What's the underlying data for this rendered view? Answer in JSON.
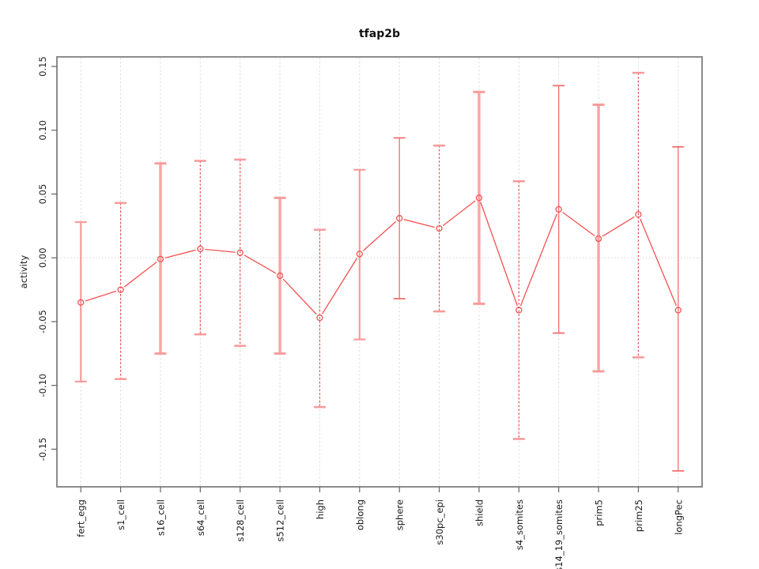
{
  "chart_data": {
    "type": "line",
    "title": "tfap2b",
    "xlabel": "",
    "ylabel": "activity",
    "legend": "none",
    "grid": "vertical dashed gridlines at each category; dotted horizontal line at y=0",
    "categories": [
      "fert_egg",
      "s1_cell",
      "s16_cell",
      "s64_cell",
      "s128_cell",
      "s512_cell",
      "high",
      "oblong",
      "sphere",
      "s30pc_epi",
      "shield",
      "s4_somites",
      "s14_19_somites",
      "prim5",
      "prim25",
      "longPec"
    ],
    "series": [
      {
        "name": "activity",
        "values": [
          -0.035,
          -0.025,
          -0.001,
          0.007,
          0.004,
          -0.014,
          -0.047,
          0.003,
          0.031,
          0.023,
          0.047,
          -0.041,
          0.038,
          0.015,
          0.034,
          -0.041
        ],
        "upper": [
          0.028,
          0.043,
          0.074,
          0.076,
          0.077,
          0.047,
          0.022,
          0.069,
          0.094,
          0.088,
          0.13,
          0.06,
          0.135,
          0.12,
          0.145,
          0.087
        ],
        "lower": [
          -0.097,
          -0.095,
          -0.075,
          -0.06,
          -0.069,
          -0.075,
          -0.117,
          -0.064,
          -0.032,
          -0.042,
          -0.036,
          -0.142,
          -0.059,
          -0.089,
          -0.078,
          -0.167
        ]
      }
    ],
    "error_bar_styles": [
      "solid-medium",
      "dashed",
      "solid-thick",
      "dashed",
      "dashed",
      "solid-thick",
      "dashed",
      "solid-medium",
      "solid-thin",
      "dashed",
      "solid-thick",
      "dashed",
      "solid-thin",
      "solid-thick",
      "dashed",
      "solid-thin"
    ],
    "ylim": [
      -0.1795,
      0.1575
    ],
    "yticks": [
      -0.15,
      -0.1,
      -0.05,
      0.0,
      0.05,
      0.1,
      0.15
    ],
    "ytick_labels": [
      "-0.15",
      "-0.10",
      "-0.05",
      "0.00",
      "0.05",
      "0.10",
      "0.15"
    ],
    "colors": {
      "point_line": "#F25252",
      "bar_thick": "#F9A6A6",
      "bar_medium": "#F79C9C",
      "bar_thin": "#F07070",
      "bar_dashed": "#E65050",
      "cap": "#F79C9C",
      "grid": "#DEDEDE",
      "zero_line": "#D6D6D6",
      "frame": "#8C8C8C",
      "tick": "#666666"
    }
  }
}
